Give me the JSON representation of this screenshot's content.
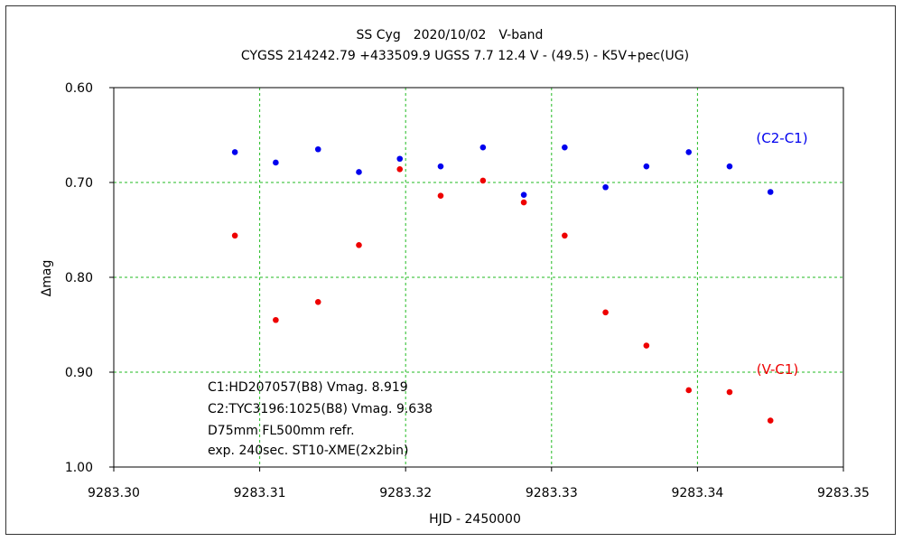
{
  "chart_data": {
    "type": "scatter",
    "title": "SS Cyg　2020/10/02　V-band",
    "subtitle": "CYGSS 214242.79 +433509.9 UGSS 7.7 12.4 V - (49.5) - K5V+pec(UG)",
    "xlabel": "HJD - 2450000",
    "ylabel": "Δmag",
    "xlim": [
      9283.3,
      9283.35
    ],
    "ylim": [
      0.6,
      1.0
    ],
    "y_inverted": true,
    "grid": true,
    "x_ticks": [
      "9283.30",
      "9283.31",
      "9283.32",
      "9283.33",
      "9283.34",
      "9283.35"
    ],
    "x_tick_values": [
      9283.3,
      9283.31,
      9283.32,
      9283.33,
      9283.34,
      9283.35
    ],
    "y_ticks": [
      "0.60",
      "0.70",
      "0.80",
      "0.90",
      "1.00"
    ],
    "y_tick_values": [
      0.6,
      0.7,
      0.8,
      0.9,
      1.0
    ],
    "series": [
      {
        "name": "(C2-C1)",
        "color": "#0000ee",
        "x": [
          9283.3083,
          9283.3111,
          9283.314,
          9283.3168,
          9283.3196,
          9283.3224,
          9283.3253,
          9283.3281,
          9283.3309,
          9283.3337,
          9283.3365,
          9283.3394,
          9283.3422,
          9283.345
        ],
        "y": [
          0.668,
          0.679,
          0.665,
          0.689,
          0.675,
          0.683,
          0.663,
          0.713,
          0.663,
          0.705,
          0.683,
          0.668,
          0.683,
          0.71
        ]
      },
      {
        "name": "(V-C1)",
        "color": "#ee0000",
        "x": [
          9283.3083,
          9283.3111,
          9283.314,
          9283.3168,
          9283.3196,
          9283.3224,
          9283.3253,
          9283.3281,
          9283.3309,
          9283.3337,
          9283.3365,
          9283.3394,
          9283.3422,
          9283.345
        ],
        "y": [
          0.756,
          0.845,
          0.826,
          0.766,
          0.686,
          0.714,
          0.698,
          0.721,
          0.756,
          0.837,
          0.872,
          0.919,
          0.921,
          0.951
        ]
      }
    ],
    "annotations": [
      "C1:HD207057(B8) Vmag. 8.919",
      "C2:TYC3196:1025(B8) Vmag. 9.638",
      "D75mm  FL500mm  refr.",
      "exp. 240sec.   ST10-XME(2x2bin)"
    ]
  }
}
